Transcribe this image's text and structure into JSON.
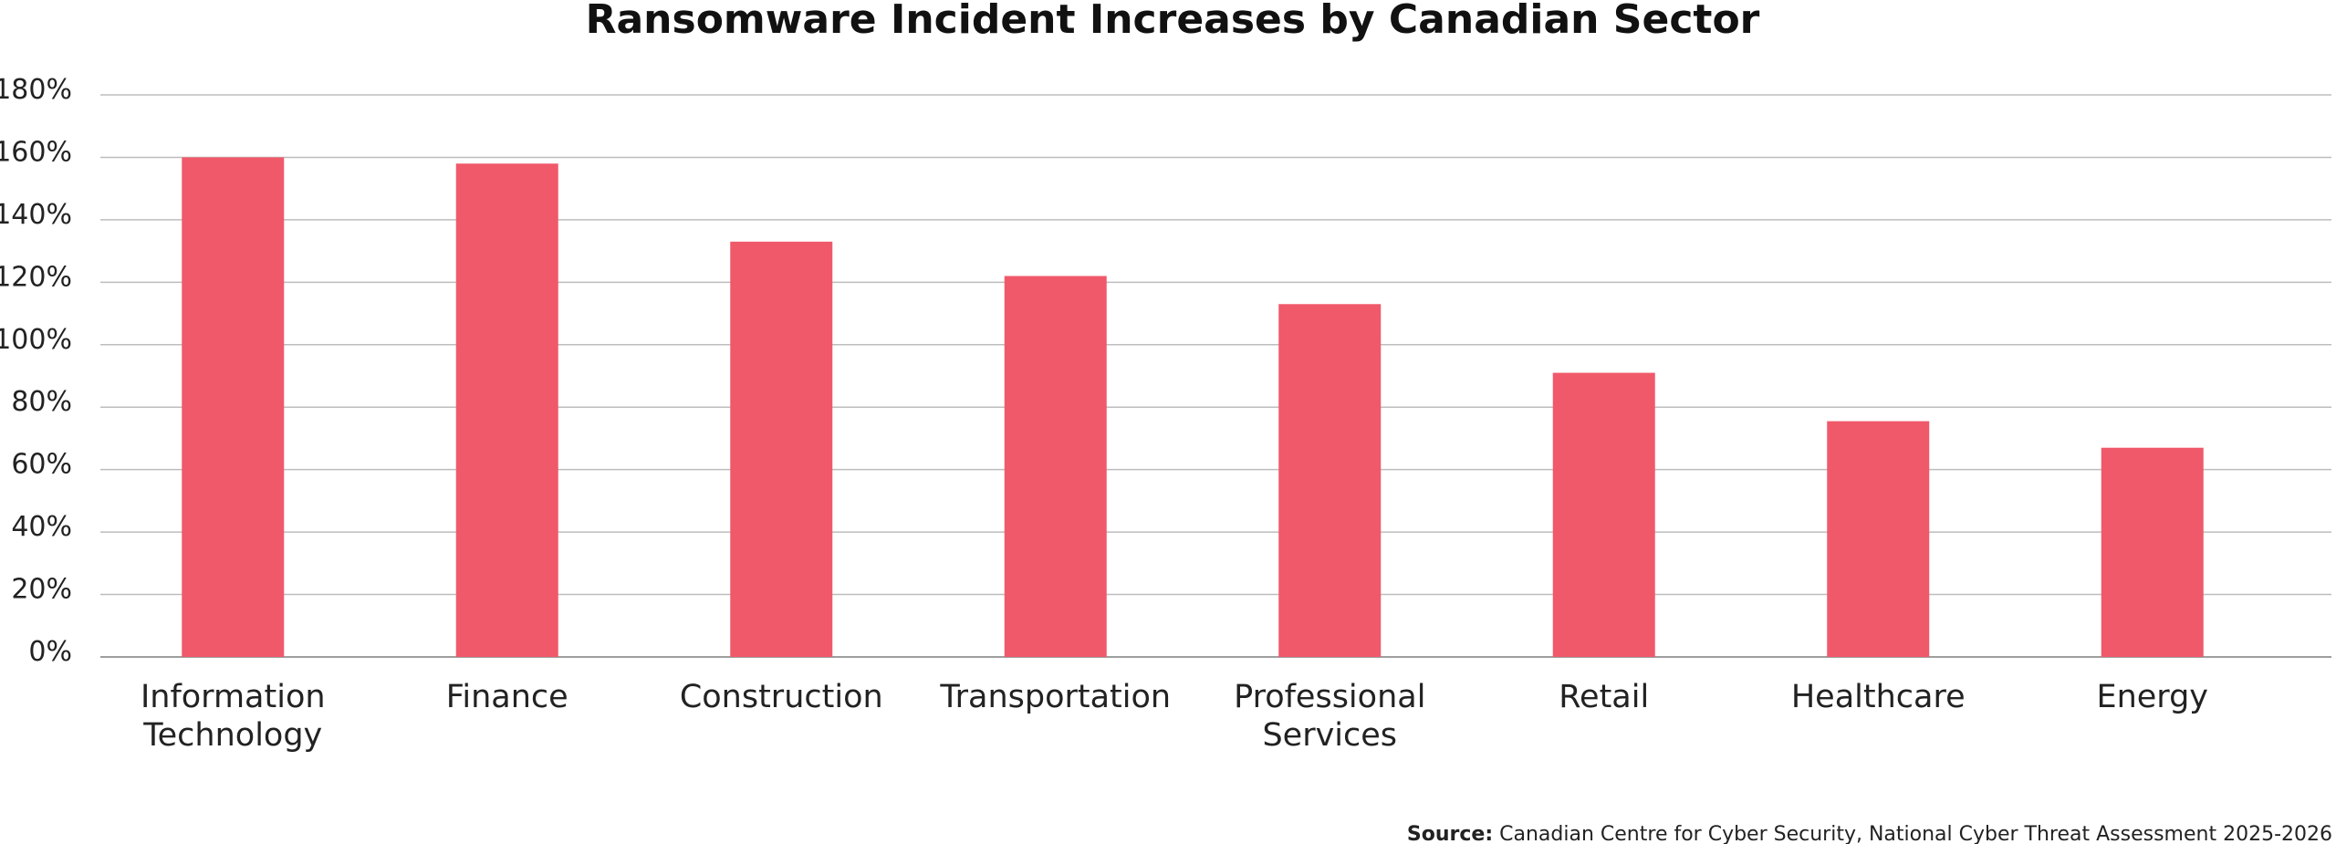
{
  "chart_data": {
    "type": "bar",
    "title": "Ransomware Incident Increases by Canadian Sector",
    "categories": [
      [
        "Information",
        "Technology"
      ],
      [
        "Finance"
      ],
      [
        "Construction"
      ],
      [
        "Transportation"
      ],
      [
        "Professional",
        "Services"
      ],
      [
        "Retail"
      ],
      [
        "Healthcare"
      ],
      [
        "Energy"
      ]
    ],
    "values": [
      160,
      158,
      133,
      122,
      113,
      91,
      75.5,
      67
    ],
    "ylim": [
      0,
      180
    ],
    "yticks": [
      0,
      20,
      40,
      60,
      80,
      100,
      120,
      140,
      160,
      180
    ],
    "ytick_labels": [
      "0%",
      "20%",
      "40%",
      "60%",
      "80%",
      "100%",
      "120%",
      "140%",
      "160%",
      "180%"
    ],
    "bar_color": "#f0596a",
    "grid": true,
    "legend": "none",
    "source_label": "Source:",
    "source_text": " Canadian Centre for Cyber Security, National Cyber Threat Assessment 2025-2026"
  }
}
